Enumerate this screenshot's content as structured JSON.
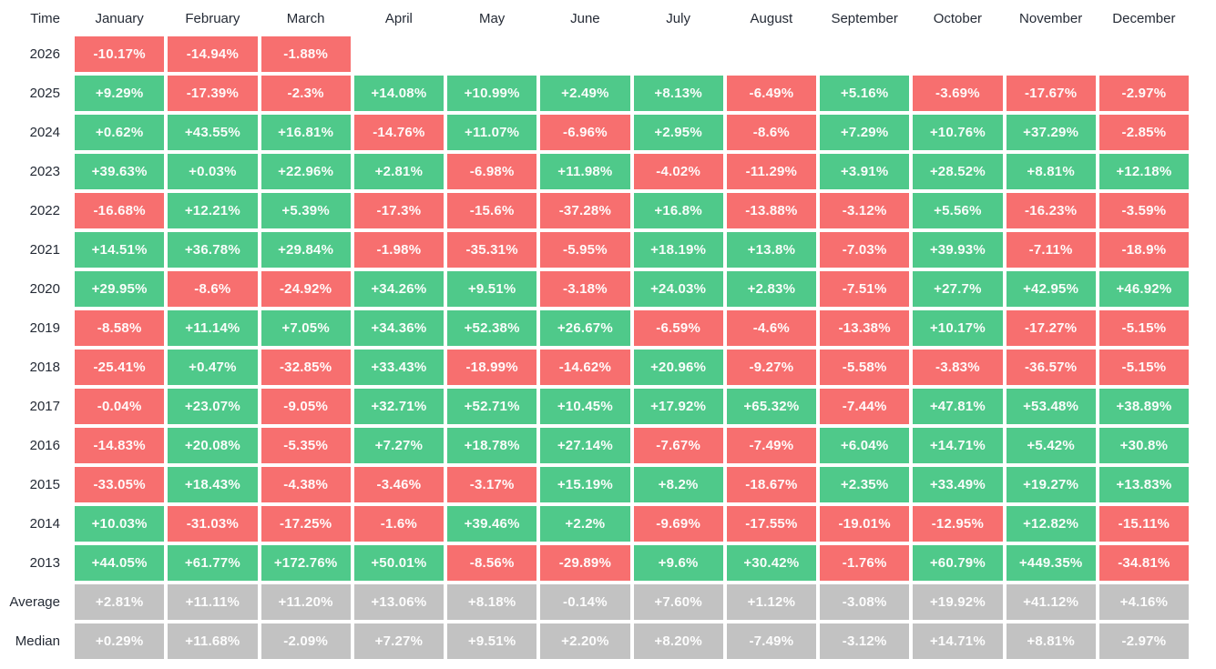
{
  "table": {
    "corner_label": "Time",
    "months": [
      "January",
      "February",
      "March",
      "April",
      "May",
      "June",
      "July",
      "August",
      "September",
      "October",
      "November",
      "December"
    ],
    "rows": [
      {
        "label": "2026",
        "type": "year",
        "values": [
          "-10.17%",
          "-14.94%",
          "-1.88%",
          "",
          "",
          "",
          "",
          "",
          "",
          "",
          "",
          ""
        ]
      },
      {
        "label": "2025",
        "type": "year",
        "values": [
          "+9.29%",
          "-17.39%",
          "-2.3%",
          "+14.08%",
          "+10.99%",
          "+2.49%",
          "+8.13%",
          "-6.49%",
          "+5.16%",
          "-3.69%",
          "-17.67%",
          "-2.97%"
        ]
      },
      {
        "label": "2024",
        "type": "year",
        "values": [
          "+0.62%",
          "+43.55%",
          "+16.81%",
          "-14.76%",
          "+11.07%",
          "-6.96%",
          "+2.95%",
          "-8.6%",
          "+7.29%",
          "+10.76%",
          "+37.29%",
          "-2.85%"
        ]
      },
      {
        "label": "2023",
        "type": "year",
        "values": [
          "+39.63%",
          "+0.03%",
          "+22.96%",
          "+2.81%",
          "-6.98%",
          "+11.98%",
          "-4.02%",
          "-11.29%",
          "+3.91%",
          "+28.52%",
          "+8.81%",
          "+12.18%"
        ]
      },
      {
        "label": "2022",
        "type": "year",
        "values": [
          "-16.68%",
          "+12.21%",
          "+5.39%",
          "-17.3%",
          "-15.6%",
          "-37.28%",
          "+16.8%",
          "-13.88%",
          "-3.12%",
          "+5.56%",
          "-16.23%",
          "-3.59%"
        ]
      },
      {
        "label": "2021",
        "type": "year",
        "values": [
          "+14.51%",
          "+36.78%",
          "+29.84%",
          "-1.98%",
          "-35.31%",
          "-5.95%",
          "+18.19%",
          "+13.8%",
          "-7.03%",
          "+39.93%",
          "-7.11%",
          "-18.9%"
        ]
      },
      {
        "label": "2020",
        "type": "year",
        "values": [
          "+29.95%",
          "-8.6%",
          "-24.92%",
          "+34.26%",
          "+9.51%",
          "-3.18%",
          "+24.03%",
          "+2.83%",
          "-7.51%",
          "+27.7%",
          "+42.95%",
          "+46.92%"
        ]
      },
      {
        "label": "2019",
        "type": "year",
        "values": [
          "-8.58%",
          "+11.14%",
          "+7.05%",
          "+34.36%",
          "+52.38%",
          "+26.67%",
          "-6.59%",
          "-4.6%",
          "-13.38%",
          "+10.17%",
          "-17.27%",
          "-5.15%"
        ]
      },
      {
        "label": "2018",
        "type": "year",
        "values": [
          "-25.41%",
          "+0.47%",
          "-32.85%",
          "+33.43%",
          "-18.99%",
          "-14.62%",
          "+20.96%",
          "-9.27%",
          "-5.58%",
          "-3.83%",
          "-36.57%",
          "-5.15%"
        ]
      },
      {
        "label": "2017",
        "type": "year",
        "values": [
          "-0.04%",
          "+23.07%",
          "-9.05%",
          "+32.71%",
          "+52.71%",
          "+10.45%",
          "+17.92%",
          "+65.32%",
          "-7.44%",
          "+47.81%",
          "+53.48%",
          "+38.89%"
        ]
      },
      {
        "label": "2016",
        "type": "year",
        "values": [
          "-14.83%",
          "+20.08%",
          "-5.35%",
          "+7.27%",
          "+18.78%",
          "+27.14%",
          "-7.67%",
          "-7.49%",
          "+6.04%",
          "+14.71%",
          "+5.42%",
          "+30.8%"
        ]
      },
      {
        "label": "2015",
        "type": "year",
        "values": [
          "-33.05%",
          "+18.43%",
          "-4.38%",
          "-3.46%",
          "-3.17%",
          "+15.19%",
          "+8.2%",
          "-18.67%",
          "+2.35%",
          "+33.49%",
          "+19.27%",
          "+13.83%"
        ]
      },
      {
        "label": "2014",
        "type": "year",
        "values": [
          "+10.03%",
          "-31.03%",
          "-17.25%",
          "-1.6%",
          "+39.46%",
          "+2.2%",
          "-9.69%",
          "-17.55%",
          "-19.01%",
          "-12.95%",
          "+12.82%",
          "-15.11%"
        ]
      },
      {
        "label": "2013",
        "type": "year",
        "values": [
          "+44.05%",
          "+61.77%",
          "+172.76%",
          "+50.01%",
          "-8.56%",
          "-29.89%",
          "+9.6%",
          "+30.42%",
          "-1.76%",
          "+60.79%",
          "+449.35%",
          "-34.81%"
        ]
      },
      {
        "label": "Average",
        "type": "summary",
        "values": [
          "+2.81%",
          "+11.11%",
          "+11.20%",
          "+13.06%",
          "+8.18%",
          "-0.14%",
          "+7.60%",
          "+1.12%",
          "-3.08%",
          "+19.92%",
          "+41.12%",
          "+4.16%"
        ]
      },
      {
        "label": "Median",
        "type": "summary",
        "values": [
          "+0.29%",
          "+11.68%",
          "-2.09%",
          "+7.27%",
          "+9.51%",
          "+2.20%",
          "+8.20%",
          "-7.49%",
          "-3.12%",
          "+14.71%",
          "+8.81%",
          "-2.97%"
        ]
      }
    ],
    "colors": {
      "positive": "#4fc98a",
      "negative": "#f76f6f",
      "summary": "#c2c2c2",
      "header_text": "#252b36",
      "cell_text": "#ffffff"
    }
  }
}
